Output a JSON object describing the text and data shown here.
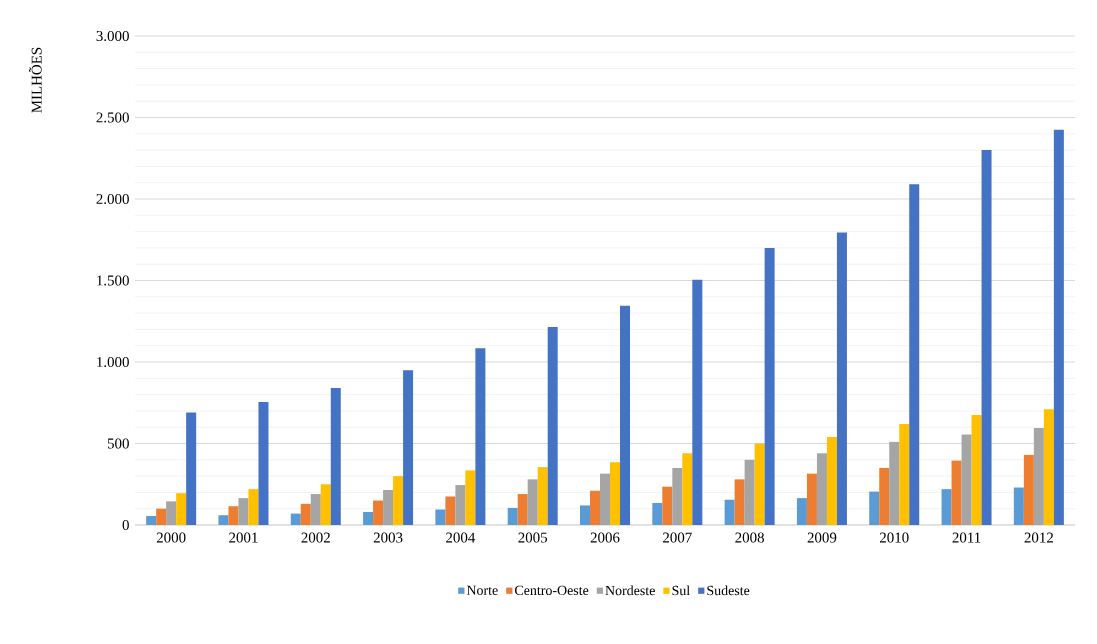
{
  "chart_data": {
    "type": "bar",
    "ylabel": "MILHÕES",
    "categories": [
      "2000",
      "2001",
      "2002",
      "2003",
      "2004",
      "2005",
      "2006",
      "2007",
      "2008",
      "2009",
      "2010",
      "2011",
      "2012"
    ],
    "series": [
      {
        "name": "Norte",
        "color": "#5b9bd5",
        "values": [
          55,
          60,
          70,
          80,
          95,
          105,
          120,
          135,
          155,
          165,
          205,
          220,
          230
        ]
      },
      {
        "name": "Centro-Oeste",
        "color": "#ed7d31",
        "values": [
          100,
          115,
          130,
          150,
          175,
          190,
          210,
          235,
          280,
          315,
          350,
          395,
          430
        ]
      },
      {
        "name": "Nordeste",
        "color": "#a5a5a5",
        "values": [
          145,
          165,
          190,
          215,
          245,
          280,
          315,
          350,
          400,
          440,
          510,
          555,
          595
        ]
      },
      {
        "name": "Sul",
        "color": "#ffc000",
        "values": [
          195,
          220,
          250,
          300,
          335,
          355,
          385,
          440,
          500,
          540,
          620,
          675,
          710
        ]
      },
      {
        "name": "Sudeste",
        "color": "#4472c4",
        "values": [
          690,
          755,
          840,
          950,
          1085,
          1215,
          1345,
          1505,
          1700,
          1795,
          2090,
          2300,
          2425
        ]
      }
    ],
    "ylim": [
      0,
      3000
    ],
    "yticks": [
      0,
      {
        "value": 100,
        "label": null
      },
      {
        "value": 200,
        "label": null
      },
      {
        "value": 300,
        "label": null
      },
      {
        "value": 400,
        "label": null
      },
      500,
      {
        "value": 600,
        "label": null
      },
      {
        "value": 700,
        "label": null
      },
      {
        "value": 800,
        "label": null
      },
      {
        "value": 900,
        "label": null
      },
      {
        "value": 1000,
        "label": "1.000"
      },
      {
        "value": 1100,
        "label": null
      },
      {
        "value": 1200,
        "label": null
      },
      {
        "value": 1300,
        "label": null
      },
      {
        "value": 1400,
        "label": null
      },
      {
        "value": 1500,
        "label": "1.500"
      },
      {
        "value": 1600,
        "label": null
      },
      {
        "value": 1700,
        "label": null
      },
      {
        "value": 1800,
        "label": null
      },
      {
        "value": 1900,
        "label": null
      },
      {
        "value": 2000,
        "label": "2.000"
      },
      {
        "value": 2100,
        "label": null
      },
      {
        "value": 2200,
        "label": null
      },
      {
        "value": 2300,
        "label": null
      },
      {
        "value": 2400,
        "label": null
      },
      {
        "value": 2500,
        "label": "2.500"
      },
      {
        "value": 2600,
        "label": null
      },
      {
        "value": 2700,
        "label": null
      },
      {
        "value": 2800,
        "label": null
      },
      {
        "value": 2900,
        "label": null
      },
      {
        "value": 3000,
        "label": "3.000"
      }
    ],
    "grid": "y",
    "legend": "bottom"
  }
}
